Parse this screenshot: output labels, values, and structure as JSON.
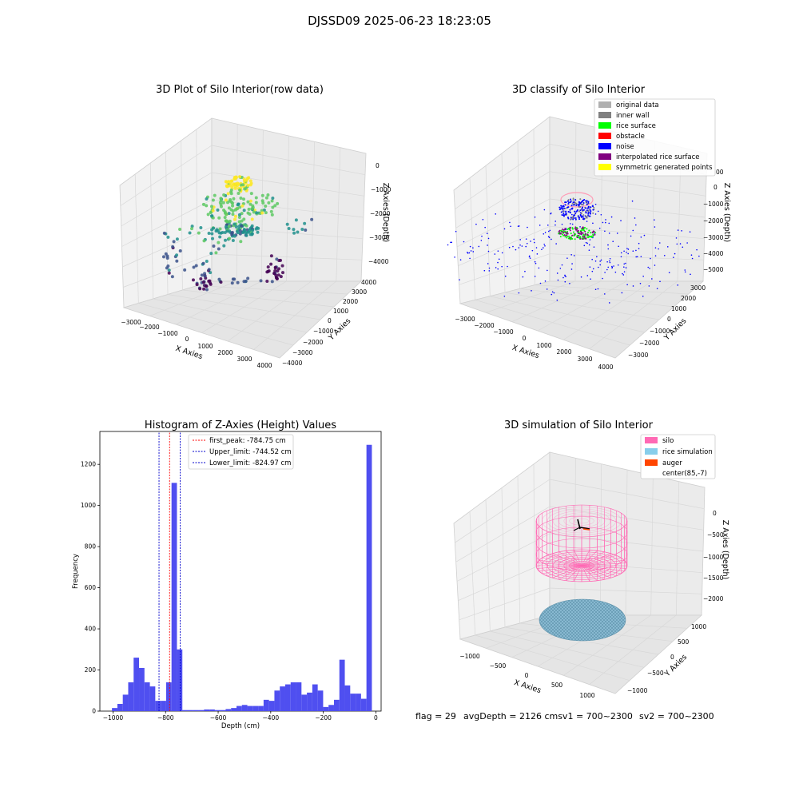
{
  "figure_title": "DJSSD09 2025-06-23 18:23:05",
  "status_line": {
    "flag": "flag = 29",
    "avg_depth": "avgDepth = 2126 cmsv1 = 700~2300",
    "sv2": "sv2 = 700~2300"
  },
  "colors": {
    "silo": "#ff69b4",
    "rice_simulation": "#87ceeb",
    "auger": "#ff4500",
    "histogram_bar": "#4f4ff0",
    "first_peak_line": "#ff0000",
    "limit_line": "#0000cc"
  },
  "chart_data": [
    {
      "type": "scatter",
      "title": "3D Plot of Silo Interior(row data)",
      "xlabel": "X Axies",
      "ylabel": "Y Axies",
      "zlabel": "Z Axies (Depth)",
      "x_ticks": [
        "−3000",
        "−2000",
        "−1000",
        "0",
        "1000",
        "2000",
        "3000",
        "4000"
      ],
      "y_ticks": [
        "−4000",
        "−3000",
        "−2000",
        "−1000",
        "0",
        "1000",
        "2000",
        "3000",
        "4000"
      ],
      "z_ticks": [
        "0",
        "−1000",
        "−2000",
        "−3000",
        "−4000"
      ],
      "colormap": "viridis",
      "note": "Raw point cloud of silo interior, colored by depth"
    },
    {
      "type": "scatter",
      "title": "3D classify of Silo Interior",
      "xlabel": "X Axies",
      "ylabel": "Y Axies",
      "zlabel": "Z Axies (Depth)",
      "x_ticks": [
        "−3000",
        "−2000",
        "−1000",
        "0",
        "1000",
        "2000",
        "3000",
        "4000"
      ],
      "y_ticks": [
        "−3000",
        "−2000",
        "−1000",
        "0",
        "1000",
        "2000",
        "3000"
      ],
      "z_ticks": [
        "0",
        "−1000",
        "−2000",
        "−3000",
        "−4000",
        "−5000"
      ],
      "z_top_partial": "00",
      "legend": [
        {
          "label": "original data",
          "color": "#b0b0b0"
        },
        {
          "label": "inner wall",
          "color": "#808080"
        },
        {
          "label": "rice surface",
          "color": "#00ff00"
        },
        {
          "label": "obstacle",
          "color": "#ff0000"
        },
        {
          "label": "noise",
          "color": "#0000ff"
        },
        {
          "label": "interpolated rice surface",
          "color": "#800080"
        },
        {
          "label": "symmetric generated points",
          "color": "#ffff00"
        }
      ]
    },
    {
      "type": "bar",
      "title": "Histogram of Z-Axies (Height) Values",
      "xlabel": "Depth (cm)",
      "ylabel": "Frequency",
      "xlim": [
        -1050,
        20
      ],
      "ylim": [
        0,
        1360
      ],
      "x_ticks": [
        -1000,
        -800,
        -600,
        -400,
        -200,
        0
      ],
      "x_tick_labels": [
        "−1000",
        "−800",
        "−600",
        "−400",
        "−200",
        "0"
      ],
      "y_ticks": [
        0,
        200,
        400,
        600,
        800,
        1000,
        1200
      ],
      "bin_start": -1004,
      "bin_width": 20.6,
      "values": [
        15,
        35,
        80,
        140,
        260,
        210,
        140,
        120,
        50,
        50,
        140,
        1110,
        300,
        5,
        5,
        5,
        5,
        8,
        8,
        5,
        5,
        10,
        15,
        25,
        30,
        25,
        25,
        25,
        55,
        50,
        100,
        120,
        130,
        140,
        140,
        80,
        90,
        130,
        100,
        20,
        30,
        55,
        250,
        125,
        85,
        85,
        60,
        1295
      ],
      "vlines": [
        {
          "label": "first_peak: -784.75 cm",
          "x": -784.75,
          "color": "#ff0000"
        },
        {
          "label": "Upper_limit: -744.52 cm",
          "x": -744.52,
          "color": "#0000cc"
        },
        {
          "label": "Lower_limit: -824.97 cm",
          "x": -824.97,
          "color": "#0000cc"
        }
      ]
    },
    {
      "type": "wireframe",
      "title": "3D simulation of Silo Interior",
      "xlabel": "X Axies",
      "ylabel": "Y Axies",
      "zlabel": "Z Axies (Depth)",
      "x_ticks": [
        "−1000",
        "−500",
        "0",
        "500",
        "1000"
      ],
      "y_ticks": [
        "−1000",
        "−500",
        "0",
        "500",
        "1000"
      ],
      "z_ticks": [
        "0",
        "−500",
        "−1000",
        "−1500",
        "−2000"
      ],
      "legend": [
        {
          "label": "silo",
          "color": "#ff69b4"
        },
        {
          "label": "rice simulation",
          "color": "#87ceeb"
        },
        {
          "label": "auger",
          "color": "#ff4500"
        },
        {
          "label": "center(85,-7)",
          "color": ""
        }
      ]
    }
  ]
}
